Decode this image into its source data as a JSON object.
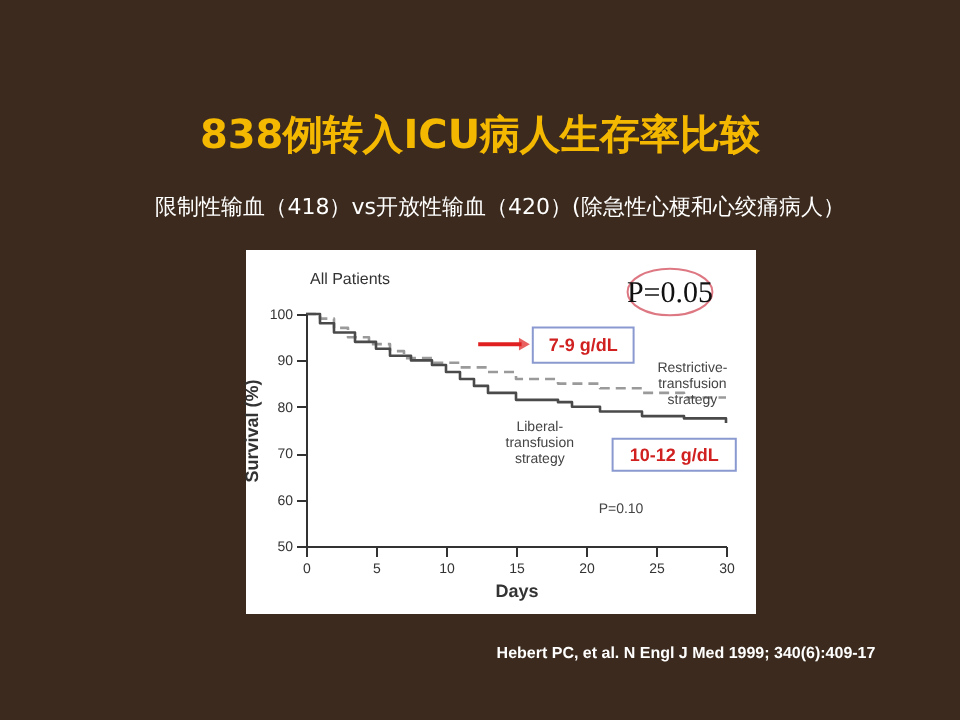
{
  "chart_data": {
    "type": "step",
    "title": "838例转入ICU病人生存率比较",
    "subtitle": "限制性输血（418）vs开放性输血（420）(除急性心梗和心绞痛病人）",
    "xlabel": "Days",
    "ylabel": "Survival (%)",
    "xlim": [
      0,
      30
    ],
    "xticks": [
      0,
      5,
      10,
      15,
      20,
      25,
      30
    ],
    "ylim": [
      50,
      100
    ],
    "yticks": [
      50,
      60,
      70,
      80,
      90,
      100
    ],
    "grid": false,
    "series": [
      {
        "name": "Restrictive-transfusion strategy",
        "color": "#9a9a9a",
        "line_style": "dashed",
        "x": [
          0,
          1,
          2,
          3,
          4.5,
          6,
          7,
          9,
          11,
          13,
          15,
          18,
          21,
          24,
          27,
          30
        ],
        "values": [
          100,
          99,
          97,
          95,
          93.5,
          92,
          90.5,
          89.5,
          88.5,
          87.5,
          86,
          85,
          84,
          83,
          82,
          82
        ]
      },
      {
        "name": "Liberal-transfusion strategy",
        "color": "#4a4a4a",
        "line_style": "solid",
        "x": [
          0,
          1,
          2,
          3.5,
          5,
          6,
          7.5,
          9,
          10,
          11,
          12,
          13,
          15,
          18,
          19,
          21,
          24,
          27,
          30
        ],
        "values": [
          100,
          98,
          96,
          94,
          92.5,
          91,
          90,
          89,
          87.5,
          86,
          84.5,
          83,
          81.5,
          81,
          80,
          79,
          78,
          77.5,
          76.5
        ]
      }
    ],
    "annotations": [
      "All Patients",
      "P=0.05",
      "7-9 g/dL",
      "10-12 g/dL",
      "P=0.10",
      "Hebert PC, et al.  N Engl J Med 1999; 340(6):409-17"
    ]
  }
}
